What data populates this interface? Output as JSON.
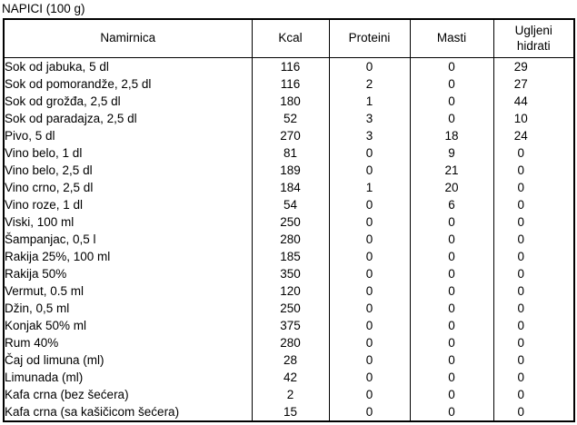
{
  "title": "NAPICI (100 g)",
  "table": {
    "headers": [
      "Namirnica",
      "Kcal",
      "Proteini",
      "Masti",
      "Ugljeni hidrati"
    ],
    "rows": [
      {
        "name": "Sok od jabuka, 5 dl",
        "kcal": "116",
        "proteini": "0",
        "masti": "0",
        "ugljeni_hidrati": "29"
      },
      {
        "name": "Sok od pomorandže, 2,5 dl",
        "kcal": "116",
        "proteini": "2",
        "masti": "0",
        "ugljeni_hidrati": "27"
      },
      {
        "name": "Sok od grožđa, 2,5 dl",
        "kcal": "180",
        "proteini": "1",
        "masti": "0",
        "ugljeni_hidrati": "44"
      },
      {
        "name": "Sok od paradajza, 2,5 dl",
        "kcal": "52",
        "proteini": "3",
        "masti": "0",
        "ugljeni_hidrati": "10"
      },
      {
        "name": "Pivo, 5 dl",
        "kcal": "270",
        "proteini": "3",
        "masti": "18",
        "ugljeni_hidrati": "24"
      },
      {
        "name": "Vino belo, 1 dl",
        "kcal": "81",
        "proteini": "0",
        "masti": "9",
        "ugljeni_hidrati": "0"
      },
      {
        "name": "Vino belo, 2,5 dl",
        "kcal": "189",
        "proteini": "0",
        "masti": "21",
        "ugljeni_hidrati": "0"
      },
      {
        "name": "Vino crno, 2,5 dl",
        "kcal": "184",
        "proteini": "1",
        "masti": "20",
        "ugljeni_hidrati": "0"
      },
      {
        "name": "Vino roze, 1 dl",
        "kcal": "54",
        "proteini": "0",
        "masti": "6",
        "ugljeni_hidrati": "0"
      },
      {
        "name": "Viski, 100 ml",
        "kcal": "250",
        "proteini": "0",
        "masti": "0",
        "ugljeni_hidrati": "0"
      },
      {
        "name": "Šampanjac, 0,5 l",
        "kcal": "280",
        "proteini": "0",
        "masti": "0",
        "ugljeni_hidrati": "0"
      },
      {
        "name": "Rakija 25%, 100 ml",
        "kcal": "185",
        "proteini": "0",
        "masti": "0",
        "ugljeni_hidrati": "0"
      },
      {
        "name": "Rakija 50%",
        "kcal": "350",
        "proteini": "0",
        "masti": "0",
        "ugljeni_hidrati": "0"
      },
      {
        "name": "Vermut, 0.5 ml",
        "kcal": "120",
        "proteini": "0",
        "masti": "0",
        "ugljeni_hidrati": "0"
      },
      {
        "name": "Džin, 0,5 ml",
        "kcal": "250",
        "proteini": "0",
        "masti": "0",
        "ugljeni_hidrati": "0"
      },
      {
        "name": "Konjak 50% ml",
        "kcal": "375",
        "proteini": "0",
        "masti": "0",
        "ugljeni_hidrati": "0"
      },
      {
        "name": "Rum 40%",
        "kcal": "280",
        "proteini": "0",
        "masti": "0",
        "ugljeni_hidrati": "0"
      },
      {
        "name": "Čaj od limuna (ml)",
        "kcal": "28",
        "proteini": "0",
        "masti": "0",
        "ugljeni_hidrati": "0"
      },
      {
        "name": "Limunada (ml)",
        "kcal": "42",
        "proteini": "0",
        "masti": "0",
        "ugljeni_hidrati": "0"
      },
      {
        "name": "Kafa crna (bez šećera)",
        "kcal": "2",
        "proteini": "0",
        "masti": "0",
        "ugljeni_hidrati": "0"
      },
      {
        "name": "Kafa crna (sa kašičicom šećera)",
        "kcal": "15",
        "proteini": "0",
        "masti": "0",
        "ugljeni_hidrati": "0"
      }
    ]
  }
}
